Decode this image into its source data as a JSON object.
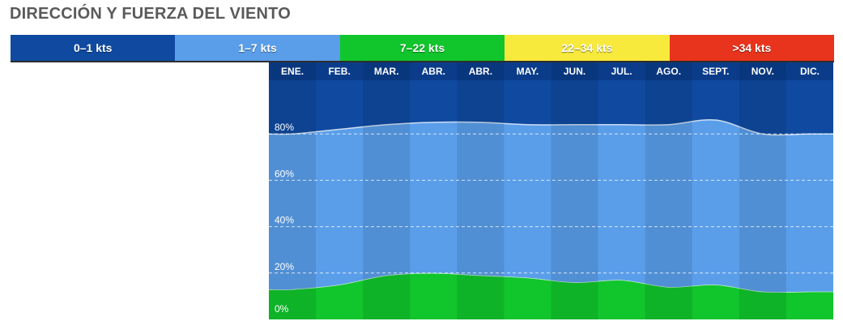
{
  "title": "DIRECCIÓN Y FUERZA DEL VIENTO",
  "legend": [
    {
      "label": "0–1 kts",
      "color": "#0f4aa0"
    },
    {
      "label": "1–7 kts",
      "color": "#5a9eea"
    },
    {
      "label": "7–22 kts",
      "color": "#11c52c"
    },
    {
      "label": "22–34 kts",
      "color": "#f8e93d"
    },
    {
      "label": ">34 kts",
      "color": "#e8341c"
    }
  ],
  "chart_data": {
    "type": "area",
    "stacked": true,
    "categories": [
      "ENE.",
      "FEB.",
      "MAR.",
      "ABR.",
      "ABR.",
      "MAY.",
      "JUN.",
      "JUL.",
      "AGO.",
      "SEPT.",
      "NOV.",
      "DIC."
    ],
    "yticks": [
      "0%",
      "20%",
      "40%",
      "60%",
      "80%"
    ],
    "ylim": [
      0,
      100
    ],
    "series": [
      {
        "name": "7–22 kts",
        "color": "#11c52c",
        "values": [
          13,
          15,
          19,
          20,
          19,
          18,
          16,
          17,
          14,
          15,
          12,
          12
        ]
      },
      {
        "name": "1–7 kts",
        "color": "#5a9eea",
        "values": [
          67,
          67,
          65,
          65,
          66,
          66,
          68,
          67,
          70,
          71,
          68,
          68
        ]
      },
      {
        "name": "0–1 kts",
        "color": "#0f4aa0",
        "values": [
          20,
          18,
          16,
          15,
          15,
          16,
          16,
          16,
          16,
          14,
          20,
          20
        ]
      }
    ]
  }
}
